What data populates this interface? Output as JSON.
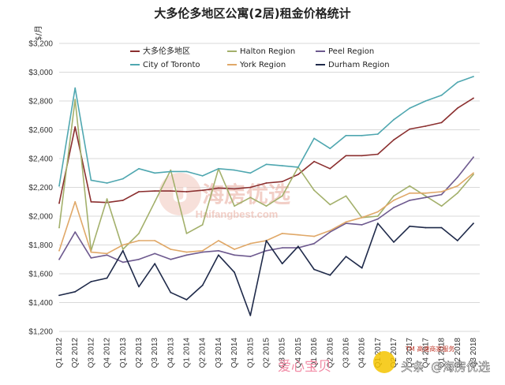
{
  "chart_data": {
    "type": "line",
    "title": "大多伦多地区公寓(2居)租金价格统计",
    "unit_label": "$/月",
    "ylim": [
      1200,
      3200
    ],
    "yticks": [
      "$1,200",
      "$1,400",
      "$1,600",
      "$1,800",
      "$2,000",
      "$2,200",
      "$2,400",
      "$2,600",
      "$2,800",
      "$3,000",
      "$3,200"
    ],
    "grid": true,
    "legend_position": "top",
    "categories": [
      "Q1 2012",
      "Q2 2012",
      "Q3 2012",
      "Q4 2012",
      "Q1 2013",
      "Q2 2013",
      "Q3 2013",
      "Q4 2013",
      "Q1 2014",
      "Q2 2014",
      "Q3 2014",
      "Q4 2014",
      "Q1 2015",
      "Q2 2015",
      "Q3 2015",
      "Q4 2015",
      "Q1 2016",
      "Q2 2016",
      "Q3 2016",
      "Q4 2016",
      "Q1 2017",
      "Q2 2017",
      "Q3 2017",
      "Q4 2017",
      "Q1 2018",
      "Q2 2018",
      "Q3 2018"
    ],
    "x_labels_visible": [
      "Q1 2012",
      "Q2 2012",
      "Q3 2012",
      "Q4 2012",
      "Q1 2013",
      "Q2 2013",
      "Q3 2013",
      "Q4 2013",
      "Q1 2014",
      "Q2 2014",
      "Q3 2014",
      "Q4 2014",
      "Q1 2015",
      "Q2 2015",
      "Q3 2015",
      "Q4 2015",
      "Q1 2016",
      "Q2 2016",
      "Q3 2016",
      "Q4 2016",
      "Q1 2017",
      "Q2 2017",
      "Q3 2017",
      "Q4 2017",
      "Q1 2018",
      "Q2 2018",
      "Q3 2018"
    ],
    "series": [
      {
        "name": "大多伦多地区",
        "color": "#8B2F2F",
        "values": [
          2090,
          2620,
          2100,
          2095,
          2110,
          2170,
          2175,
          2175,
          2170,
          2180,
          2195,
          2190,
          2200,
          2230,
          2240,
          2290,
          2380,
          2330,
          2420,
          2420,
          2430,
          2530,
          2605,
          2625,
          2650,
          2750,
          2820
        ]
      },
      {
        "name": "Halton Region",
        "color": "#A3B06B",
        "values": [
          1920,
          2810,
          1760,
          2120,
          1770,
          1880,
          2100,
          2320,
          1880,
          1940,
          2330,
          2070,
          2130,
          2070,
          2140,
          2340,
          2180,
          2080,
          2140,
          1990,
          2000,
          2140,
          2210,
          2140,
          2070,
          2160,
          2290
        ]
      },
      {
        "name": "Peel Region",
        "color": "#6E5A8F",
        "values": [
          1700,
          1890,
          1710,
          1730,
          1680,
          1700,
          1740,
          1700,
          1730,
          1750,
          1760,
          1730,
          1720,
          1760,
          1780,
          1780,
          1810,
          1890,
          1950,
          1940,
          1980,
          2060,
          2110,
          2130,
          2150,
          2270,
          2410
        ]
      },
      {
        "name": "City of Toronto",
        "color": "#4FA7B0",
        "values": [
          2210,
          2890,
          2250,
          2230,
          2260,
          2330,
          2300,
          2310,
          2310,
          2280,
          2330,
          2320,
          2300,
          2360,
          2350,
          2340,
          2540,
          2470,
          2560,
          2560,
          2570,
          2670,
          2750,
          2800,
          2840,
          2930,
          2970
        ]
      },
      {
        "name": "York Region",
        "color": "#E0A868",
        "values": [
          1760,
          2100,
          1750,
          1740,
          1800,
          1830,
          1830,
          1770,
          1750,
          1760,
          1830,
          1770,
          1810,
          1830,
          1880,
          1870,
          1860,
          1900,
          1960,
          1990,
          2030,
          2110,
          2160,
          2160,
          2170,
          2210,
          2300
        ]
      },
      {
        "name": "Durham Region",
        "color": "#1F2A4A",
        "values": [
          1450,
          1475,
          1545,
          1570,
          1760,
          1510,
          1670,
          1470,
          1420,
          1520,
          1730,
          1610,
          1310,
          1830,
          1670,
          1790,
          1630,
          1590,
          1720,
          1640,
          1950,
          1820,
          1930,
          1920,
          1920,
          1830,
          1950
        ]
      }
    ]
  },
  "watermark": {
    "name": "海房优选",
    "url": "Haifangbest.com",
    "logo_glyph": "U"
  },
  "footer": {
    "left_text": "爱心宝贝",
    "channel_label": "头条",
    "account": "@海房优选",
    "small_text": "TM 高速商家服务"
  }
}
